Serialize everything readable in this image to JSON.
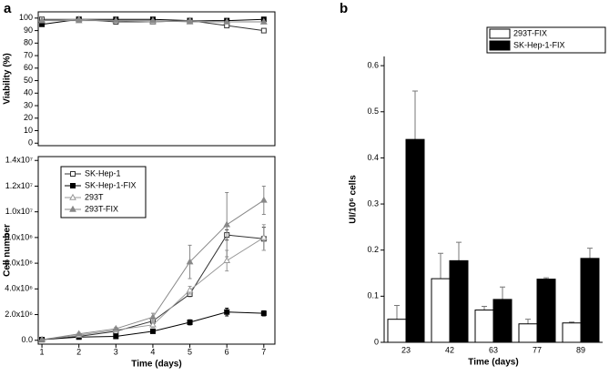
{
  "chart_data": [
    {
      "type": "line",
      "panel_label": "a",
      "ylabel": "Viability (%)",
      "x": [
        1,
        2,
        3,
        4,
        5,
        6,
        7
      ],
      "xlim": [
        0.9,
        7.3
      ],
      "ylim": [
        -2,
        105
      ],
      "yticks": [
        0,
        10,
        20,
        30,
        40,
        50,
        60,
        70,
        80,
        90,
        100
      ],
      "series": [
        {
          "color": "#333333",
          "marker": "open-square",
          "values": [
            99,
            99,
            97,
            97,
            98,
            94,
            90
          ]
        },
        {
          "color": "#000000",
          "marker": "filled-square",
          "values": [
            95,
            99,
            99,
            99,
            98,
            98,
            99
          ]
        },
        {
          "color": "#999999",
          "marker": "open-triangle",
          "values": [
            98,
            99,
            98,
            97,
            98,
            97,
            97
          ]
        },
        {
          "color": "#888888",
          "marker": "filled-triangle",
          "values": [
            98,
            98,
            98,
            98,
            97,
            97,
            97
          ]
        }
      ]
    },
    {
      "type": "line",
      "ylabel": "Cell number",
      "xlabel": "Time (days)",
      "x": [
        1,
        2,
        3,
        4,
        5,
        6,
        7
      ],
      "xlim": [
        0.9,
        7.3
      ],
      "xticks": [
        1,
        2,
        3,
        4,
        5,
        6,
        7
      ],
      "ylim": [
        -300000,
        14300000
      ],
      "yticks": [
        {
          "value": 0,
          "label": "0.0"
        },
        {
          "value": 2000000,
          "label": "2.0x10⁶"
        },
        {
          "value": 4000000,
          "label": "4.0x10⁶"
        },
        {
          "value": 6000000,
          "label": "6.0x10⁶"
        },
        {
          "value": 8000000,
          "label": "8.0x10⁶"
        },
        {
          "value": 10000000,
          "label": "1.0x10⁷"
        },
        {
          "value": 12000000,
          "label": "1.2x10⁷"
        },
        {
          "value": 14000000,
          "label": "1.4x10⁷"
        }
      ],
      "legend": "upper left",
      "series": [
        {
          "name": "SK-Hep-1",
          "color": "#333333",
          "marker": "open-square",
          "values": [
            50000,
            300000,
            700000,
            1500000,
            3600000,
            8200000,
            7900000
          ],
          "errors": [
            20000,
            100000,
            100000,
            200000,
            200000,
            400000,
            900000
          ]
        },
        {
          "name": "SK-Hep-1-FIX",
          "color": "#000000",
          "marker": "filled-square",
          "values": [
            50000,
            250000,
            300000,
            700000,
            1400000,
            2200000,
            2100000
          ],
          "errors": [
            20000,
            50000,
            100000,
            100000,
            200000,
            300000,
            200000
          ]
        },
        {
          "name": "293T",
          "color": "#999999",
          "marker": "open-triangle",
          "values": [
            50000,
            400000,
            800000,
            1200000,
            3900000,
            6200000,
            8000000
          ],
          "errors": [
            20000,
            100000,
            100000,
            200000,
            300000,
            800000,
            1000000
          ]
        },
        {
          "name": "293T-FIX",
          "color": "#888888",
          "marker": "filled-triangle",
          "values": [
            50000,
            500000,
            900000,
            1800000,
            6100000,
            9000000,
            10900000
          ],
          "errors": [
            20000,
            100000,
            100000,
            300000,
            1300000,
            2500000,
            1100000
          ]
        }
      ]
    },
    {
      "type": "bar",
      "panel_label": "b",
      "ylabel": "UI/10⁶ cells",
      "xlabel": "Time (days)",
      "categories": [
        "23",
        "42",
        "63",
        "77",
        "89"
      ],
      "ylim": [
        0,
        0.62
      ],
      "yticks": [
        0,
        0.1,
        0.2,
        0.3,
        0.4,
        0.5,
        0.6
      ],
      "legend": "upper right",
      "series": [
        {
          "name": "293T-FIX",
          "color": "#ffffff",
          "values": [
            0.05,
            0.138,
            0.07,
            0.04,
            0.042
          ],
          "errors": [
            0.03,
            0.055,
            0.008,
            0.01,
            0.002
          ]
        },
        {
          "name": "SK-Hep-1-FIX",
          "color": "#000000",
          "values": [
            0.44,
            0.177,
            0.093,
            0.137,
            0.182
          ],
          "errors": [
            0.105,
            0.04,
            0.027,
            0.003,
            0.022
          ]
        }
      ]
    }
  ]
}
